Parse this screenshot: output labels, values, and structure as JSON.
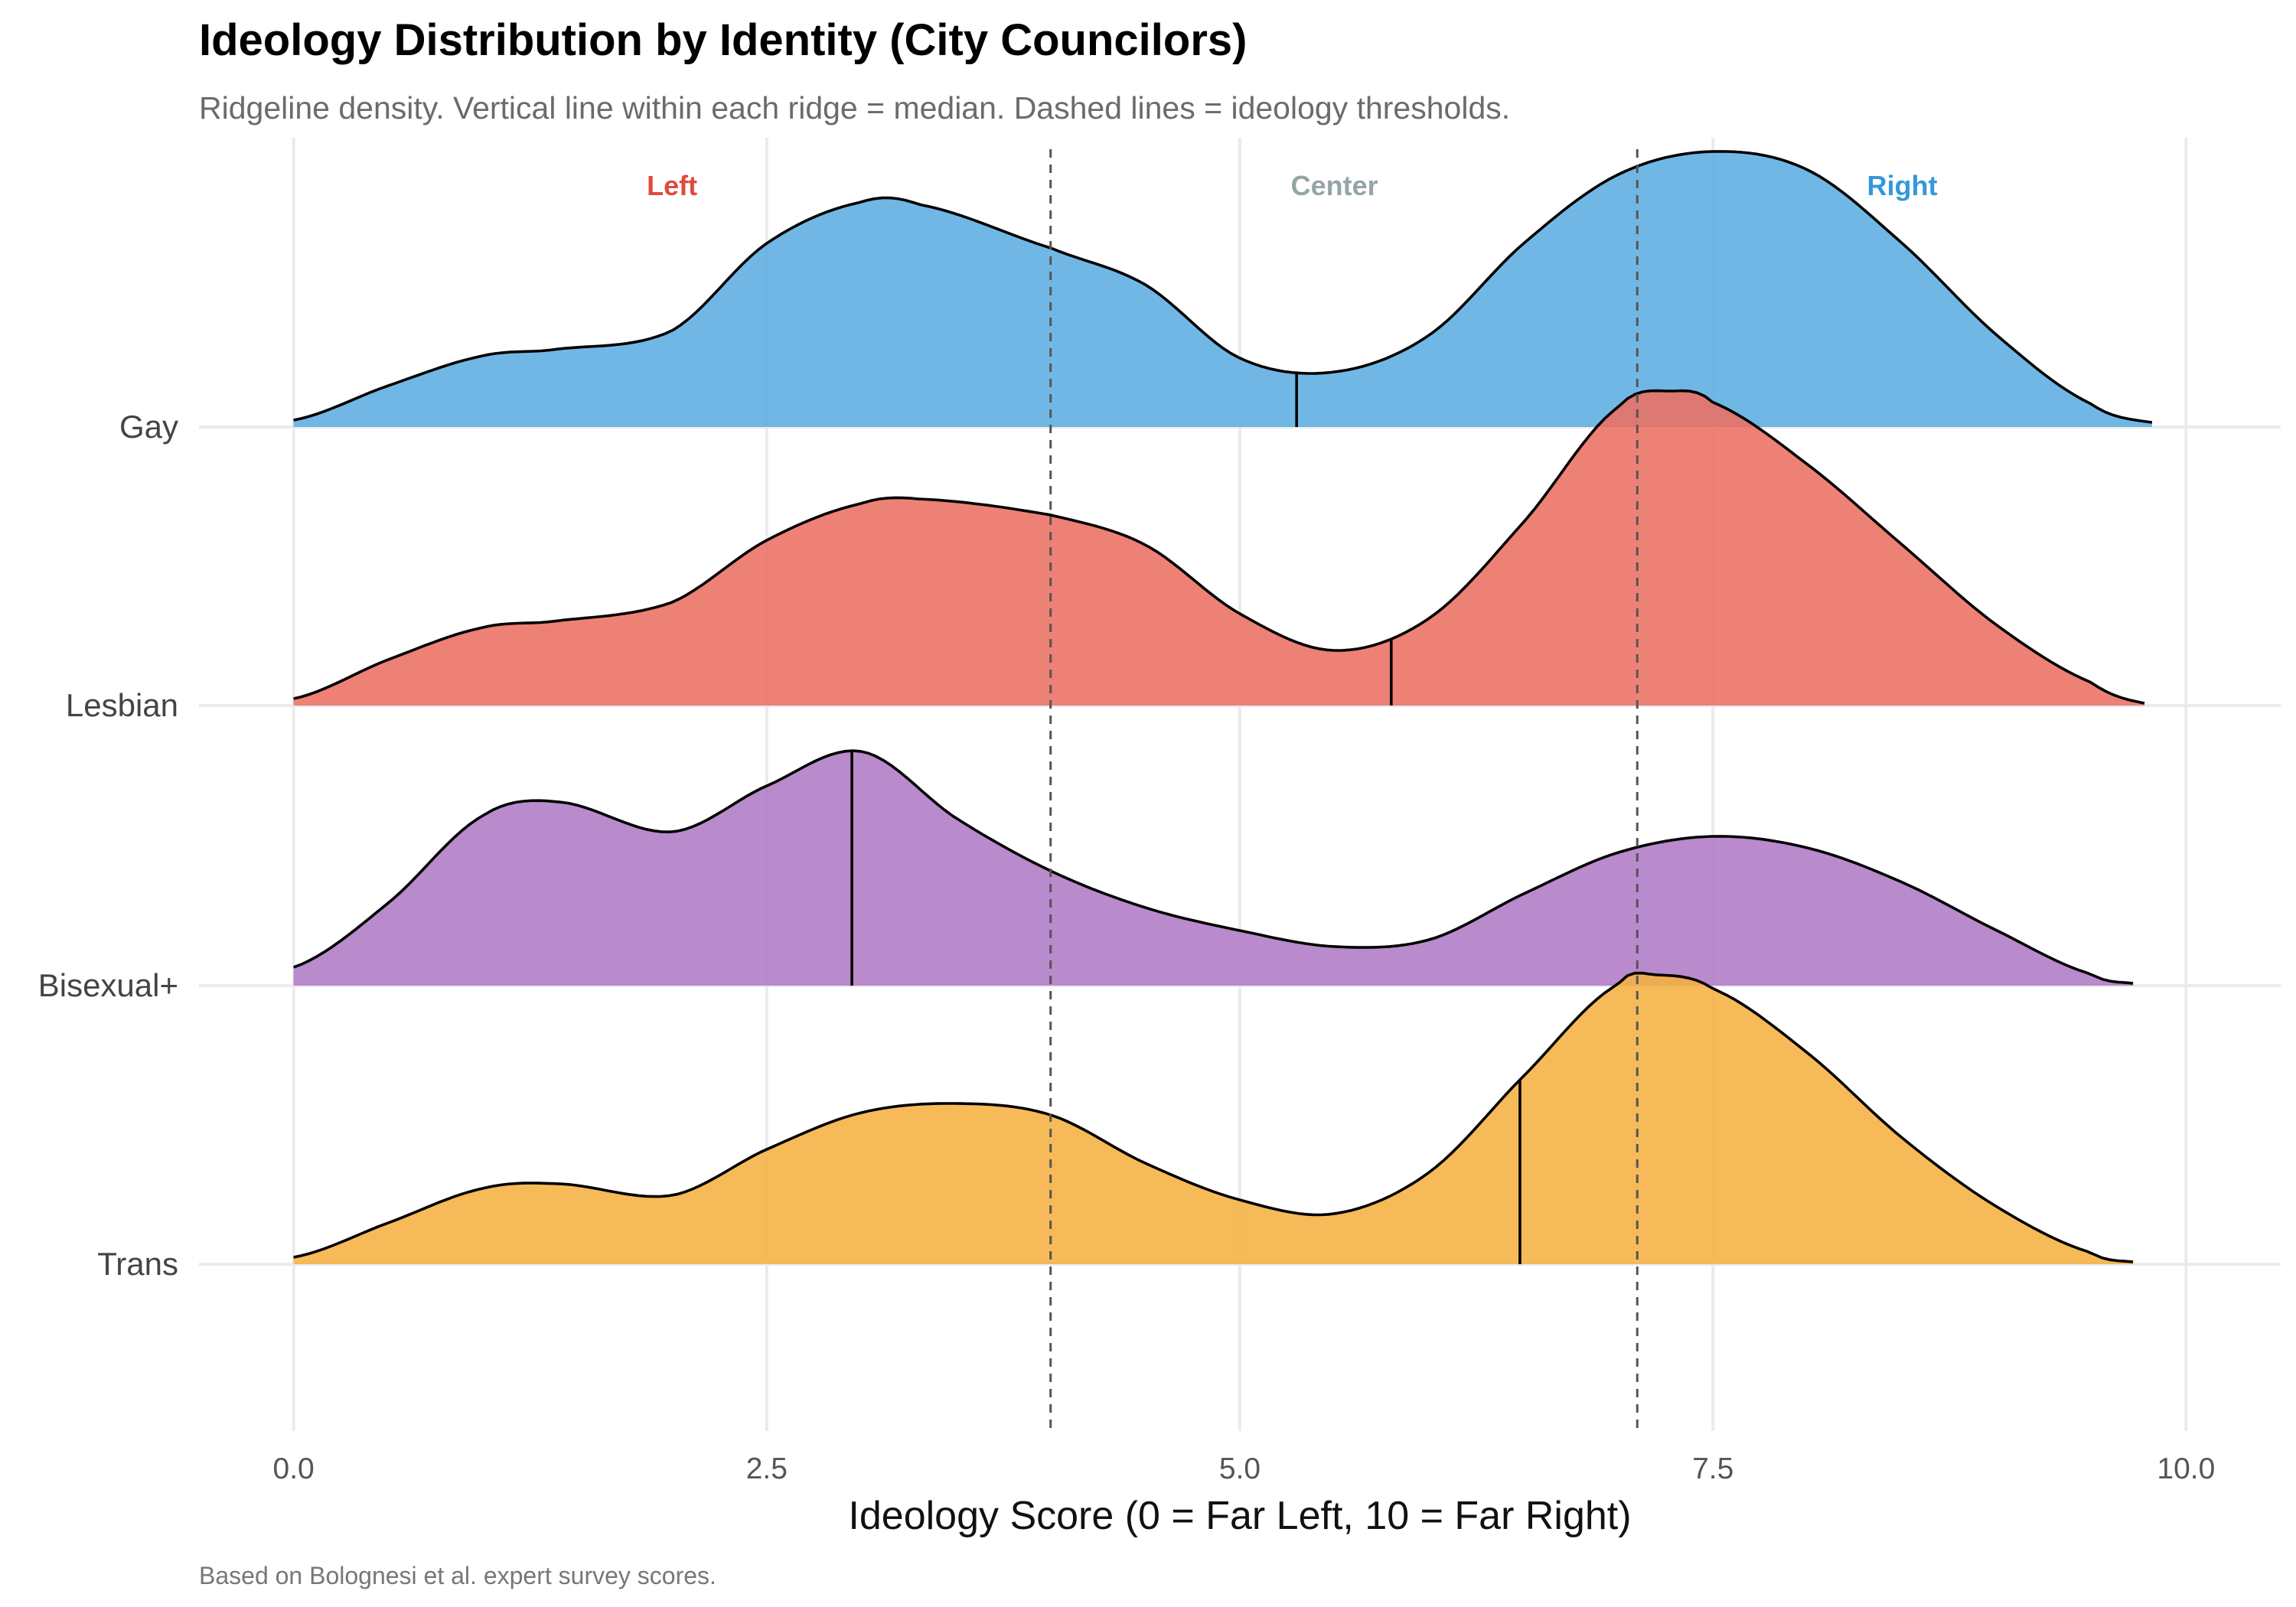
{
  "chart_data": {
    "type": "ridgeline",
    "title": "Ideology Distribution by Identity (City Councilors)",
    "subtitle": "Ridgeline density. Vertical line within each ridge = median. Dashed lines = ideology thresholds.",
    "caption": "Based on Bolognesi et al. expert survey scores.",
    "xlabel": "Ideology Score (0 = Far Left, 10 = Far Right)",
    "xlim": [
      -0.5,
      10.5
    ],
    "x_ticks": [
      0.0,
      2.5,
      5.0,
      7.5,
      10.0
    ],
    "x_tick_labels": [
      "0.0",
      "2.5",
      "5.0",
      "7.5",
      "10.0"
    ],
    "thresholds": [
      4.0,
      7.1
    ],
    "zones": [
      {
        "label": "Left",
        "x": 2.0,
        "color": "#e04a3c"
      },
      {
        "label": "Center",
        "x": 5.5,
        "color": "#95a5a6"
      },
      {
        "label": "Right",
        "x": 8.5,
        "color": "#3498db"
      }
    ],
    "series": [
      {
        "name": "Gay",
        "color": "#5dade2",
        "median": 5.3,
        "x": [
          0.0,
          0.5,
          1.0,
          1.4,
          2.0,
          2.5,
          3.0,
          3.3,
          4.0,
          4.5,
          5.0,
          5.5,
          6.0,
          6.5,
          7.0,
          7.5,
          8.0,
          8.5,
          9.0,
          9.5,
          9.82
        ],
        "density": [
          0.03,
          0.18,
          0.31,
          0.34,
          0.42,
          0.8,
          0.98,
          0.97,
          0.78,
          0.62,
          0.3,
          0.24,
          0.4,
          0.8,
          1.1,
          1.2,
          1.12,
          0.8,
          0.4,
          0.1,
          0.02
        ]
      },
      {
        "name": "Lesbian",
        "color": "#ec7063",
        "median": 5.8,
        "x": [
          0.0,
          0.5,
          1.0,
          1.4,
          2.0,
          2.5,
          3.0,
          3.3,
          4.0,
          4.5,
          5.0,
          5.5,
          6.0,
          6.5,
          7.0,
          7.3,
          7.5,
          8.0,
          8.5,
          9.0,
          9.5,
          9.78
        ],
        "density": [
          0.03,
          0.2,
          0.34,
          0.37,
          0.45,
          0.72,
          0.88,
          0.9,
          0.83,
          0.7,
          0.4,
          0.24,
          0.38,
          0.8,
          1.3,
          1.37,
          1.32,
          1.05,
          0.7,
          0.35,
          0.1,
          0.01
        ]
      },
      {
        "name": "Bisexual+",
        "color": "#af7ac5",
        "median": 2.95,
        "x": [
          0.0,
          0.5,
          1.0,
          1.4,
          2.0,
          2.5,
          3.0,
          3.5,
          4.0,
          4.5,
          5.0,
          5.5,
          6.0,
          6.5,
          7.0,
          7.5,
          8.0,
          8.5,
          9.0,
          9.5,
          9.72
        ],
        "density": [
          0.08,
          0.36,
          0.74,
          0.8,
          0.67,
          0.87,
          1.02,
          0.73,
          0.5,
          0.34,
          0.24,
          0.17,
          0.2,
          0.4,
          0.58,
          0.65,
          0.6,
          0.45,
          0.24,
          0.05,
          0.01
        ]
      },
      {
        "name": "Trans",
        "color": "#f5b041",
        "median": 6.48,
        "x": [
          0.0,
          0.5,
          1.0,
          1.4,
          2.0,
          2.5,
          3.0,
          3.5,
          4.0,
          4.5,
          5.0,
          5.5,
          6.0,
          6.5,
          7.0,
          7.2,
          7.5,
          8.0,
          8.5,
          9.0,
          9.5,
          9.72
        ],
        "density": [
          0.03,
          0.18,
          0.33,
          0.35,
          0.3,
          0.5,
          0.66,
          0.7,
          0.65,
          0.44,
          0.28,
          0.22,
          0.4,
          0.82,
          1.22,
          1.26,
          1.2,
          0.92,
          0.55,
          0.25,
          0.05,
          0.01
        ]
      }
    ]
  }
}
